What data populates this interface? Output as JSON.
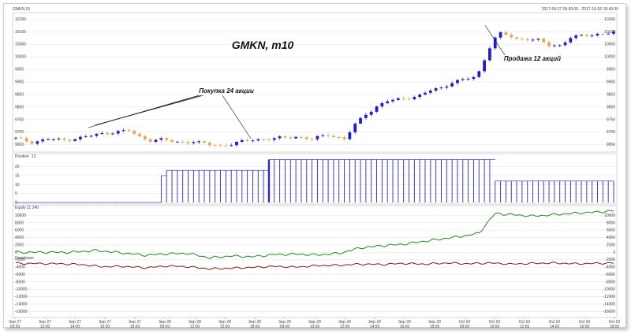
{
  "window": {
    "symbol": "GMKN,10",
    "range": "2017-09-27 09:50:00 - 2017-10-02 18:40:00"
  },
  "annotations": {
    "title": "GMKN, m10",
    "buy": "Покупка 24 акции",
    "sell": "Продажа 12 акций"
  },
  "panels": {
    "position": {
      "label": "Position",
      "value": "12"
    },
    "equity": {
      "label": "Equity",
      "value": "11 240"
    },
    "drawdown": {
      "label": "Drawdown"
    }
  },
  "colors": {
    "bull": "#1c1cd6",
    "bear": "#f0a04a",
    "position": "#2a2acb",
    "equity": "#1f8a1f",
    "drawdown": "#8b1a1a",
    "grid": "#e3e3e3"
  },
  "chart_data": [
    {
      "type": "candlestick",
      "title": "GMKN, m10",
      "y_ticks": [
        "10150",
        "10100",
        "10050",
        "10000",
        "9950",
        "9900",
        "9850",
        "9800",
        "9750",
        "9700",
        "9650"
      ],
      "ylim": [
        9630,
        10170
      ],
      "close_path": [
        [
          0,
          9675
        ],
        [
          3,
          9660
        ],
        [
          6,
          9672
        ],
        [
          9,
          9668
        ],
        [
          12,
          9678
        ],
        [
          15,
          9690
        ],
        [
          18,
          9700
        ],
        [
          21,
          9706
        ],
        [
          23,
          9680
        ],
        [
          25,
          9668
        ],
        [
          27,
          9670
        ],
        [
          30,
          9660
        ],
        [
          33,
          9662
        ],
        [
          36,
          9650
        ],
        [
          38,
          9646
        ],
        [
          40,
          9652
        ],
        [
          42,
          9662
        ],
        [
          44,
          9670
        ],
        [
          46,
          9672
        ],
        [
          48,
          9674
        ],
        [
          50,
          9678
        ],
        [
          52,
          9682
        ],
        [
          55,
          9672
        ],
        [
          58,
          9690
        ],
        [
          61,
          9672
        ],
        [
          63,
          9730
        ],
        [
          65,
          9772
        ],
        [
          67,
          9802
        ],
        [
          69,
          9824
        ],
        [
          71,
          9830
        ],
        [
          73,
          9838
        ],
        [
          75,
          9846
        ],
        [
          77,
          9866
        ],
        [
          79,
          9876
        ],
        [
          81,
          9900
        ],
        [
          83,
          9908
        ],
        [
          85,
          9918
        ],
        [
          86,
          9940
        ],
        [
          87,
          9990
        ],
        [
          88,
          10040
        ],
        [
          89,
          10075
        ],
        [
          90,
          10092
        ],
        [
          91,
          10088
        ],
        [
          93,
          10070
        ],
        [
          95,
          10072
        ],
        [
          97,
          10066
        ],
        [
          99,
          10045
        ],
        [
          101,
          10046
        ],
        [
          103,
          10078
        ],
        [
          105,
          10082
        ],
        [
          107,
          10088
        ],
        [
          109,
          10094
        ],
        [
          111,
          10098
        ]
      ],
      "annotations": [
        "Покупка 24 акции",
        "Продажа 12 акций"
      ]
    },
    {
      "type": "bar",
      "series": [
        {
          "name": "Position",
          "steps": [
            [
              0,
              0
            ],
            [
              27,
              15
            ],
            [
              28,
              18
            ],
            [
              47,
              24
            ],
            [
              89,
              12
            ],
            [
              111,
              12
            ]
          ]
        }
      ],
      "y_ticks": [
        "20",
        "15",
        "10",
        "5",
        "0"
      ],
      "ylim": [
        0,
        26
      ]
    },
    {
      "type": "line",
      "series": [
        {
          "name": "Equity",
          "values": [
            [
              0,
              0
            ],
            [
              10,
              0
            ],
            [
              15,
              500
            ],
            [
              20,
              -200
            ],
            [
              24,
              -800
            ],
            [
              28,
              -400
            ],
            [
              32,
              -300
            ],
            [
              36,
              -1500
            ],
            [
              40,
              -1000
            ],
            [
              44,
              -1200
            ],
            [
              48,
              -600
            ],
            [
              52,
              -500
            ],
            [
              56,
              -700
            ],
            [
              60,
              -300
            ],
            [
              64,
              1200
            ],
            [
              68,
              1800
            ],
            [
              72,
              2200
            ],
            [
              76,
              3000
            ],
            [
              80,
              3800
            ],
            [
              84,
              4600
            ],
            [
              86,
              5200
            ],
            [
              88,
              8800
            ],
            [
              89,
              10500
            ],
            [
              92,
              10200
            ],
            [
              96,
              9800
            ],
            [
              100,
              10200
            ],
            [
              104,
              10600
            ],
            [
              108,
              10900
            ],
            [
              111,
              11240
            ]
          ]
        },
        {
          "name": "Drawdown",
          "values": [
            [
              0,
              -3000
            ],
            [
              8,
              -3100
            ],
            [
              12,
              -3300
            ],
            [
              16,
              -3900
            ],
            [
              20,
              -3800
            ],
            [
              24,
              -4200
            ],
            [
              28,
              -3700
            ],
            [
              32,
              -3900
            ],
            [
              36,
              -4500
            ],
            [
              40,
              -4300
            ],
            [
              44,
              -4100
            ],
            [
              48,
              -3800
            ],
            [
              52,
              -4000
            ],
            [
              56,
              -3600
            ],
            [
              60,
              -3500
            ],
            [
              64,
              -3200
            ],
            [
              68,
              -3300
            ],
            [
              72,
              -3000
            ],
            [
              76,
              -3200
            ],
            [
              80,
              -2900
            ],
            [
              84,
              -3100
            ],
            [
              88,
              -2900
            ],
            [
              92,
              -3200
            ],
            [
              96,
              -3000
            ],
            [
              100,
              -2900
            ],
            [
              104,
              -3100
            ],
            [
              108,
              -3000
            ],
            [
              111,
              -2900
            ]
          ]
        }
      ],
      "y_ticks": [
        "10000",
        "8000",
        "6000",
        "4000",
        "2000",
        "0",
        "-2000",
        "-4000",
        "-6000",
        "-8000",
        "-10000",
        "-12000",
        "-14000",
        "-16000"
      ],
      "ylim": [
        -17000,
        12000
      ]
    }
  ],
  "x_ticks": [
    [
      "Sep 27",
      "09:50"
    ],
    [
      "Sep 27",
      "12:00"
    ],
    [
      "Sep 27",
      "14:00"
    ],
    [
      "Sep 27",
      "16:00"
    ],
    [
      "Sep 27",
      "18:00"
    ],
    [
      "Sep 28",
      "09:00"
    ],
    [
      "Sep 28",
      "12:00"
    ],
    [
      "Sep 28",
      "15:00"
    ],
    [
      "Sep 28",
      "18:00"
    ],
    [
      "Sep 29",
      "09:00"
    ],
    [
      "Sep 29",
      "10:00"
    ],
    [
      "Sep 29",
      "12:00"
    ],
    [
      "Sep 29",
      "14:00"
    ],
    [
      "Sep 29",
      "16:00"
    ],
    [
      "Sep 29",
      "18:00"
    ],
    [
      "Oct 02",
      "09:00"
    ],
    [
      "Oct 02",
      "10:00"
    ],
    [
      "Oct 02",
      "12:00"
    ],
    [
      "Oct 02",
      "14:00"
    ],
    [
      "Oct 02",
      "16:00"
    ],
    [
      "Oct 02",
      "18:00"
    ]
  ]
}
